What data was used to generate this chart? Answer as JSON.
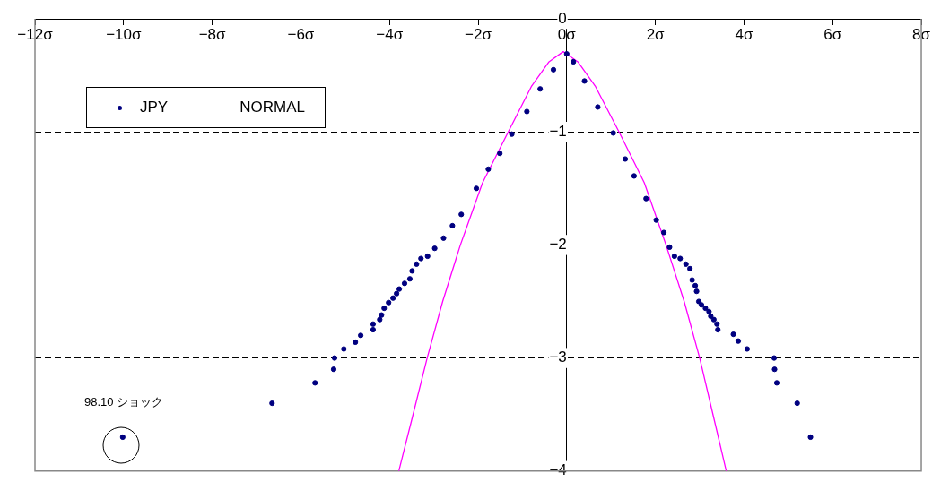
{
  "chart_data": {
    "type": "scatter",
    "xlim": [
      -12,
      8
    ],
    "ylim": [
      -4,
      0
    ],
    "xticks": [
      {
        "value": -12,
        "label": "−12σ"
      },
      {
        "value": -10,
        "label": "−10σ"
      },
      {
        "value": -8,
        "label": "−8σ"
      },
      {
        "value": -6,
        "label": "−6σ"
      },
      {
        "value": -4,
        "label": "−4σ"
      },
      {
        "value": -2,
        "label": "−2σ"
      },
      {
        "value": 0,
        "label": "0σ"
      },
      {
        "value": 2,
        "label": "2σ"
      },
      {
        "value": 4,
        "label": "4σ"
      },
      {
        "value": 6,
        "label": "6σ"
      },
      {
        "value": 8,
        "label": "8σ"
      }
    ],
    "yticks": [
      0,
      {
        "value": -1,
        "label": "−1"
      },
      {
        "value": -2,
        "label": "−2"
      },
      {
        "value": -3,
        "label": "−3"
      },
      {
        "value": -4,
        "label": "−4"
      }
    ],
    "grid": "y",
    "legend": "top left",
    "marker": "circle",
    "series": [
      {
        "name": "JPY",
        "color": "#000080",
        "x": [
          -10.02,
          -6.65,
          -5.68,
          -5.26,
          -5.24,
          -5.03,
          -4.77,
          -4.65,
          -4.37,
          -4.37,
          -4.22,
          -4.18,
          -4.12,
          -4.02,
          -3.92,
          -3.84,
          -3.78,
          -3.66,
          -3.54,
          -3.49,
          -3.39,
          -3.29,
          -3.14,
          -2.98,
          -2.78,
          -2.58,
          -2.38,
          -2.04,
          -1.77,
          -1.51,
          -1.24,
          -0.9,
          -0.6,
          -0.3,
          0,
          0.15,
          0.4,
          0.7,
          1.05,
          1.32,
          1.52,
          1.79,
          2.02,
          2.19,
          2.32,
          2.43,
          2.56,
          2.69,
          2.78,
          2.83,
          2.9,
          2.93,
          2.98,
          3.04,
          3.13,
          3.21,
          3.25,
          3.32,
          3.39,
          3.41,
          3.76,
          3.87,
          4.07,
          4.68,
          4.69,
          4.74,
          5.2,
          5.5
        ],
        "values": [
          -3.7,
          -3.4,
          -3.22,
          -3.1,
          -3.0,
          -2.92,
          -2.86,
          -2.8,
          -2.75,
          -2.7,
          -2.66,
          -2.62,
          -2.56,
          -2.51,
          -2.47,
          -2.43,
          -2.39,
          -2.34,
          -2.3,
          -2.23,
          -2.17,
          -2.12,
          -2.1,
          -2.03,
          -1.94,
          -1.83,
          -1.73,
          -1.5,
          -1.33,
          -1.19,
          -1.02,
          -0.82,
          -0.62,
          -0.45,
          -0.31,
          -0.38,
          -0.55,
          -0.78,
          -1.01,
          -1.24,
          -1.39,
          -1.59,
          -1.78,
          -1.89,
          -2.02,
          -2.1,
          -2.12,
          -2.17,
          -2.21,
          -2.31,
          -2.36,
          -2.41,
          -2.5,
          -2.53,
          -2.56,
          -2.59,
          -2.63,
          -2.66,
          -2.7,
          -2.75,
          -2.79,
          -2.85,
          -2.92,
          -3.0,
          -3.1,
          -3.22,
          -3.4,
          -3.7
        ]
      },
      {
        "name": "NORMAL",
        "type": "line",
        "color": "#ff00ff",
        "marker": "none",
        "x": [
          -3.79,
          -3.5,
          -3.15,
          -2.8,
          -2.4,
          -1.9,
          -1.32,
          -0.8,
          -0.4,
          -0.08,
          0.25,
          0.65,
          1.18,
          1.75,
          2.24,
          2.65,
          3.0,
          3.33,
          3.6
        ],
        "values": [
          -4,
          -3.55,
          -3,
          -2.5,
          -2,
          -1.45,
          -1,
          -0.6,
          -0.38,
          -0.29,
          -0.38,
          -0.6,
          -1,
          -1.45,
          -2,
          -2.5,
          -3,
          -3.55,
          -4
        ]
      }
    ],
    "annotations": [
      "98.10 ショック"
    ]
  }
}
